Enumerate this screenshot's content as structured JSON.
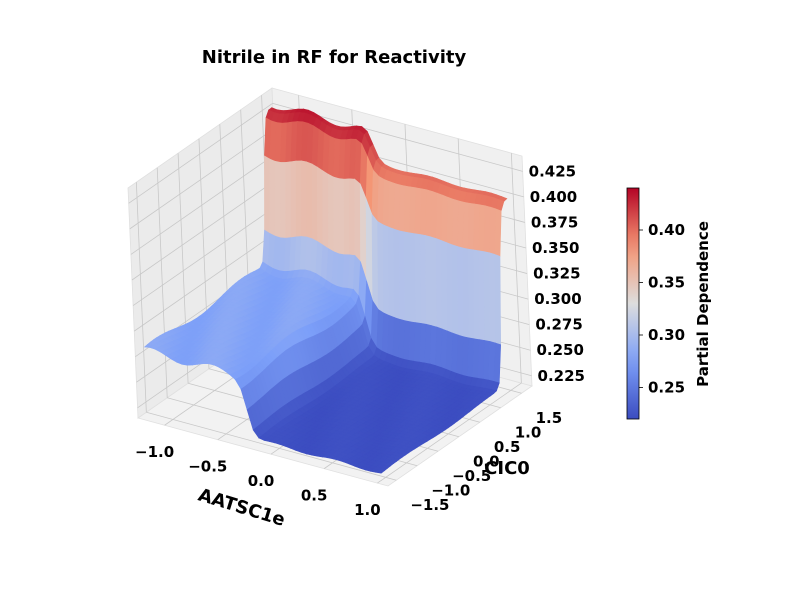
{
  "chart_data": {
    "type": "surface",
    "title": "Nitrile in RF for Reactivity",
    "xlabel": "AATSC1e",
    "ylabel": "CIC0",
    "zlabel": "",
    "xlim": [
      -1.25,
      1.1
    ],
    "ylim": [
      -1.7,
      1.75
    ],
    "zlim": [
      0.215,
      0.44
    ],
    "x_ticks": [
      "−1.0",
      "−0.5",
      "0.0",
      "0.5",
      "1.0"
    ],
    "y_ticks": [
      "−1.5",
      "−1.0",
      "−0.5",
      "0.0",
      "0.5",
      "1.0",
      "1.5"
    ],
    "z_ticks": [
      "0.225",
      "0.250",
      "0.275",
      "0.300",
      "0.325",
      "0.350",
      "0.375",
      "0.400",
      "0.425"
    ],
    "colormap": "coolwarm",
    "colorbar": {
      "label": "Partial Dependence",
      "range": [
        0.22,
        0.44
      ],
      "ticks": [
        "0.25",
        "0.30",
        "0.35",
        "0.40"
      ]
    },
    "surface_levels": {
      "low_cic0_low_aatsc1e": 0.28,
      "low_cic0_high_aatsc1e": 0.222,
      "high_cic0_low_aatsc1e": 0.43,
      "high_cic0_high_aatsc1e": 0.4,
      "aatsc1e_step_at": -0.25,
      "cic0_step_at": 1.35
    },
    "grid": true,
    "legend": "colorbar-right"
  }
}
